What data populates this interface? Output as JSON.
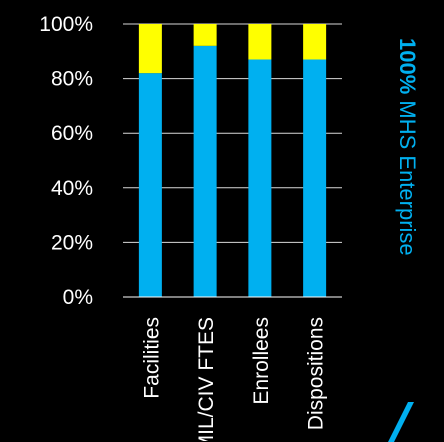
{
  "chart_data": {
    "type": "bar",
    "stacked": true,
    "categories": [
      "Facilities",
      "MIL/CIV FTES",
      "Enrollees",
      "Dispositions"
    ],
    "series": [
      {
        "values": [
          82,
          92,
          87,
          87
        ],
        "color": "#00B0F0"
      },
      {
        "values": [
          18,
          8,
          13,
          13
        ],
        "color": "#FFFF00"
      }
    ],
    "ylim": [
      0,
      100
    ],
    "yticks": [
      "0%",
      "20%",
      "40%",
      "60%",
      "80%",
      "100%"
    ],
    "grid": true,
    "xlabel": "",
    "ylabel": ""
  },
  "side_label": {
    "bold": "100%",
    "rest": " MHS Enterprise",
    "color": "#00B0F0"
  },
  "colors": {
    "background": "#000000",
    "axis": "#FFFFFF"
  }
}
